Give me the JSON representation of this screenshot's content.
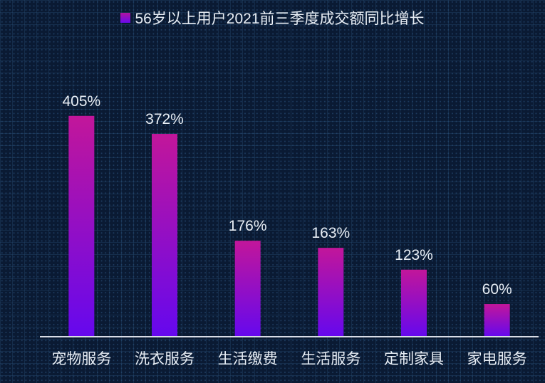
{
  "chart_data": {
    "type": "bar",
    "title": "",
    "legend": {
      "entries": [
        "56岁以上用户2021前三季度成交额同比增长"
      ],
      "placement": "top-center"
    },
    "categories": [
      "宠物服务",
      "洗衣服务",
      "生活缴费",
      "生活服务",
      "定制家具",
      "家电服务"
    ],
    "series": [
      {
        "name": "56岁以上用户2021前三季度成交额同比增长",
        "values": [
          405,
          372,
          176,
          163,
          123,
          60
        ]
      }
    ],
    "data_labels": [
      "405%",
      "372%",
      "176%",
      "163%",
      "123%",
      "60%"
    ],
    "unit": "%",
    "ylim": [
      0,
      500
    ],
    "y_axis_visible": false,
    "grid": false,
    "colors": {
      "bar_top": "#c2169a",
      "bar_bottom": "#6508ee",
      "background": "#0a1a33",
      "text": "#e8eef5",
      "axis": "#d8dce6"
    }
  }
}
